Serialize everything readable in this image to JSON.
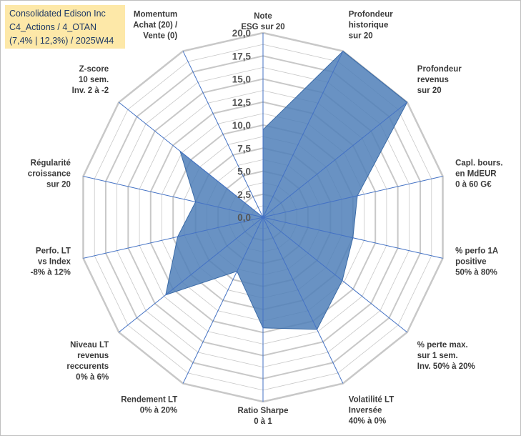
{
  "header": {
    "line1": "Consolidated Edison Inc",
    "line2": "C4_Actions / 4_OTAN",
    "line3": "(7,4% | 12,3%) / 2025W44"
  },
  "colors": {
    "fill": "#4f7fb8",
    "spoke": "#4472c4",
    "grid": "#c8c8c8",
    "title_bg": "#fde8a8"
  },
  "chart_data": {
    "type": "radar",
    "rmax": 20,
    "tick_values": [
      0,
      2.5,
      5,
      7.5,
      10,
      12.5,
      15,
      17.5,
      20
    ],
    "tick_labels": [
      "0,0",
      "2,5",
      "5,0",
      "7,5",
      "10,0",
      "12,5",
      "15,0",
      "17,5",
      "20,0"
    ],
    "axes": [
      {
        "label": [
          "Note",
          "ESG sur 20"
        ],
        "value": 9.5
      },
      {
        "label": [
          "Profondeur",
          "historique",
          "sur 20"
        ],
        "value": 20
      },
      {
        "label": [
          "Profondeur",
          "revenus",
          "sur 20"
        ],
        "value": 20
      },
      {
        "label": [
          "Capl. bours.",
          "en MdEUR",
          "0 à 60 G€"
        ],
        "value": 10.5
      },
      {
        "label": [
          "% perfo 1A",
          "positive",
          "50% à 80%"
        ],
        "value": 10
      },
      {
        "label": [
          "% perte max.",
          "sur 1 sem.",
          "Inv. 50% à 20%"
        ],
        "value": 11
      },
      {
        "label": [
          "Volatilité LT",
          "Inversée",
          "40% à 0%"
        ],
        "value": 13.5
      },
      {
        "label": [
          "Ratio Sharpe",
          "0 à 1"
        ],
        "value": 12
      },
      {
        "label": [
          "Rendement LT",
          "0% à 20%"
        ],
        "value": 6.5
      },
      {
        "label": [
          "Niveau LT",
          "revenus",
          "reccurents",
          "0% à 6%"
        ],
        "value": 13.5
      },
      {
        "label": [
          "Perfo. LT",
          "vs Index",
          "-8% à 12%"
        ],
        "value": 9.5
      },
      {
        "label": [
          "Régularité",
          "croissance",
          "sur 20"
        ],
        "value": 7.5
      },
      {
        "label": [
          "Z-score",
          "10 sem.",
          "Inv. 2 à -2"
        ],
        "value": 11.5
      },
      {
        "label": [
          "Momentum",
          "Achat (20) /",
          "Vente (0)"
        ],
        "value": 0
      }
    ]
  }
}
